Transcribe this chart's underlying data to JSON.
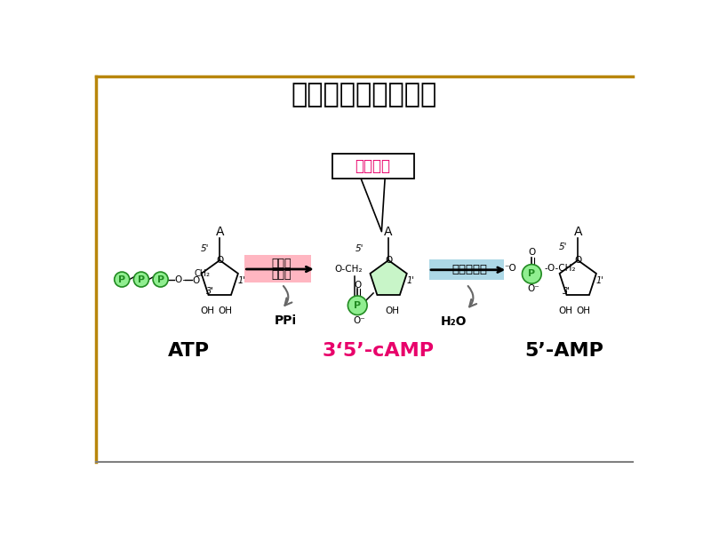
{
  "title": "脂肪动员的激素调节",
  "title_fontsize": 22,
  "title_color": "#000000",
  "bg_color": "#ffffff",
  "border_color_gold": "#B8860B",
  "border_color_gray": "#808080",
  "label_ATP": "ATP",
  "label_cAMP": "3‘5’-cAMP",
  "label_AMP": "5’-AMP",
  "label_cAMP_color": "#E8006A",
  "label_ATP_color": "#000000",
  "label_AMP_color": "#000000",
  "enzyme1_line1": "腺苷酸",
  "enzyme1_line2": "环化酶",
  "enzyme2_label": "磷酸二酯酶",
  "enzyme1_bg": "#FFB6C1",
  "enzyme2_bg": "#ADD8E6",
  "second_messenger_label": "第二信使",
  "second_messenger_color": "#E8006A",
  "PPi_label": "PPi",
  "H2O_label": "H₂O",
  "phosphate_green": "#90EE90",
  "ring_green_light": "#c8f5c8",
  "p_circle_edge": "#228B22"
}
